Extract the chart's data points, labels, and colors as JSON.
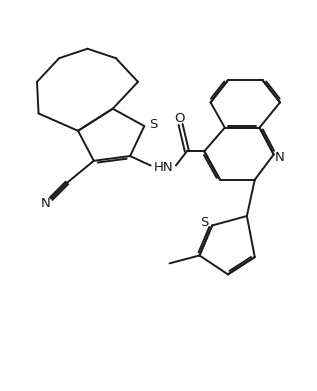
{
  "bg_color": "#ffffff",
  "line_color": "#1a1a1a",
  "line_width": 1.4,
  "figsize": [
    3.17,
    3.91
  ],
  "dpi": 100,
  "xlim": [
    0,
    10
  ],
  "ylim": [
    0,
    12.3
  ]
}
